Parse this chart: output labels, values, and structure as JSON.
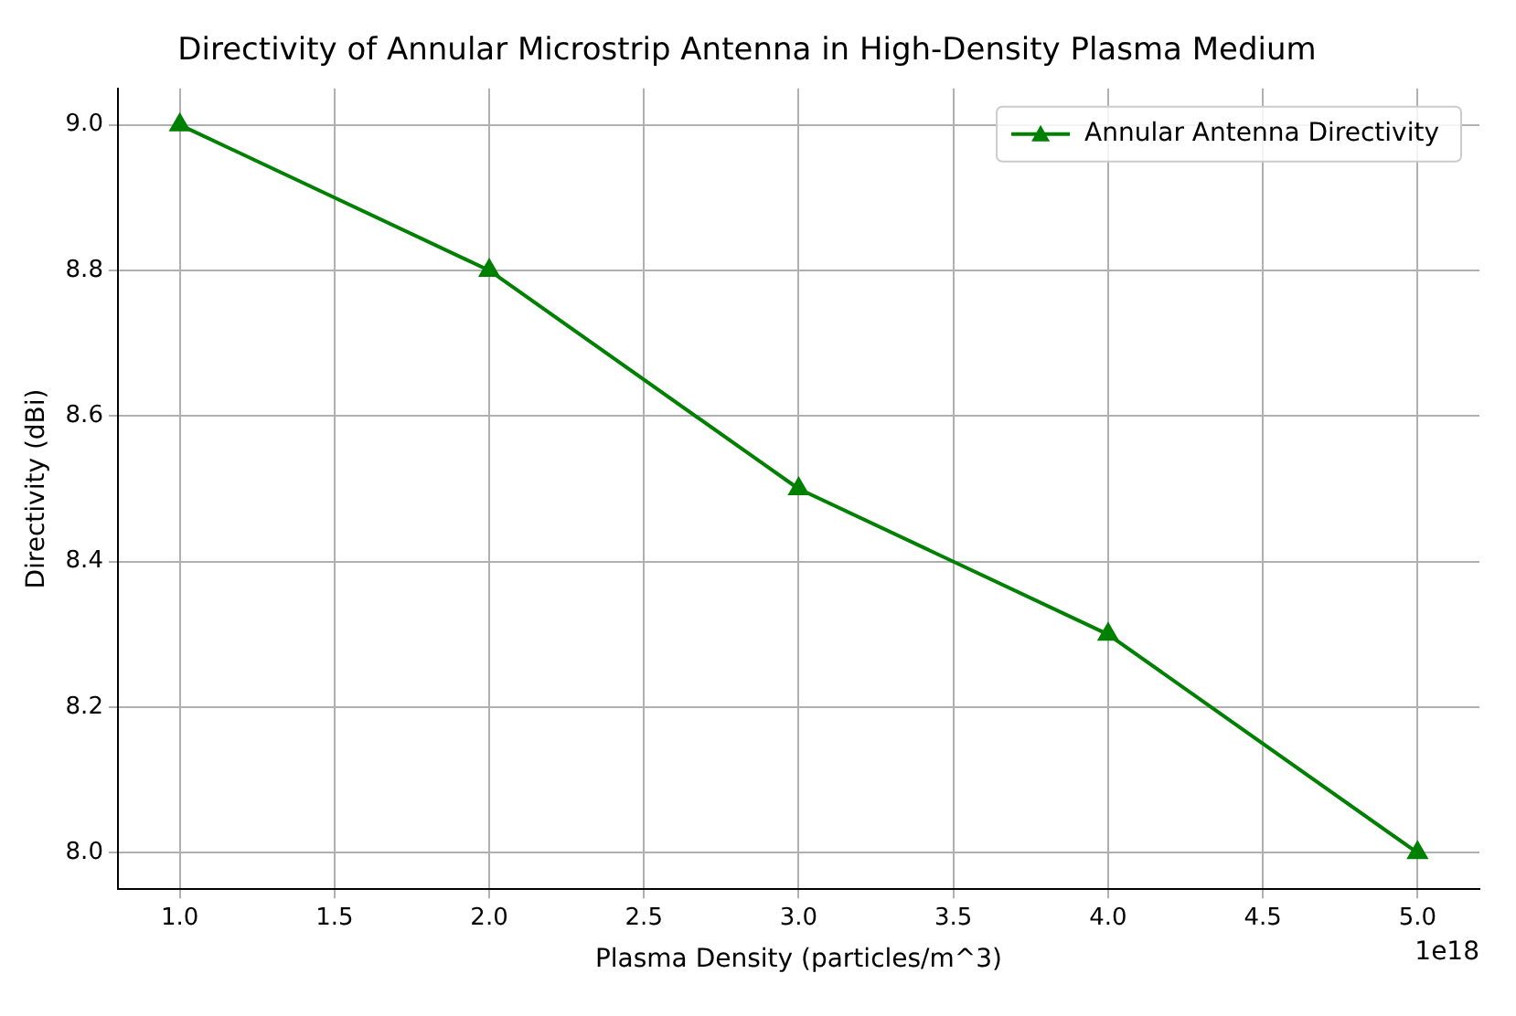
{
  "chart_data": {
    "type": "line",
    "title": "Directivity of Annular Microstrip Antenna in High-Density Plasma Medium",
    "xlabel": "Plasma Density (particles/m^3)",
    "ylabel": "Directivity (dBi)",
    "x": [
      1,
      2,
      3,
      4,
      5
    ],
    "series": [
      {
        "name": "Annular Antenna Directivity",
        "color": "#008000",
        "values": [
          9.0,
          8.8,
          8.5,
          8.3,
          8.0
        ]
      }
    ],
    "xlim": [
      0.8,
      5.2
    ],
    "xticks": [
      {
        "value": 1,
        "label": "1.0"
      },
      {
        "value": 1.5,
        "label": "1.5"
      },
      {
        "value": 2,
        "label": "2.0"
      },
      {
        "value": 2.5,
        "label": "2.5"
      },
      {
        "value": 3,
        "label": "3.0"
      },
      {
        "value": 3.5,
        "label": "3.5"
      },
      {
        "value": 4,
        "label": "4.0"
      },
      {
        "value": 4.5,
        "label": "4.5"
      },
      {
        "value": 5,
        "label": "5.0"
      }
    ],
    "ylim": [
      7.95,
      9.05
    ],
    "yticks": [
      {
        "value": 8,
        "label": "8.0"
      },
      {
        "value": 8.2,
        "label": "8.2"
      },
      {
        "value": 8.4,
        "label": "8.4"
      },
      {
        "value": 8.6,
        "label": "8.6"
      },
      {
        "value": 8.8,
        "label": "8.8"
      },
      {
        "value": 9,
        "label": "9.0"
      }
    ],
    "annotations": [
      "1e18"
    ],
    "grid": true,
    "legend": "top right",
    "marker": "triangle",
    "line_style": "solid"
  }
}
